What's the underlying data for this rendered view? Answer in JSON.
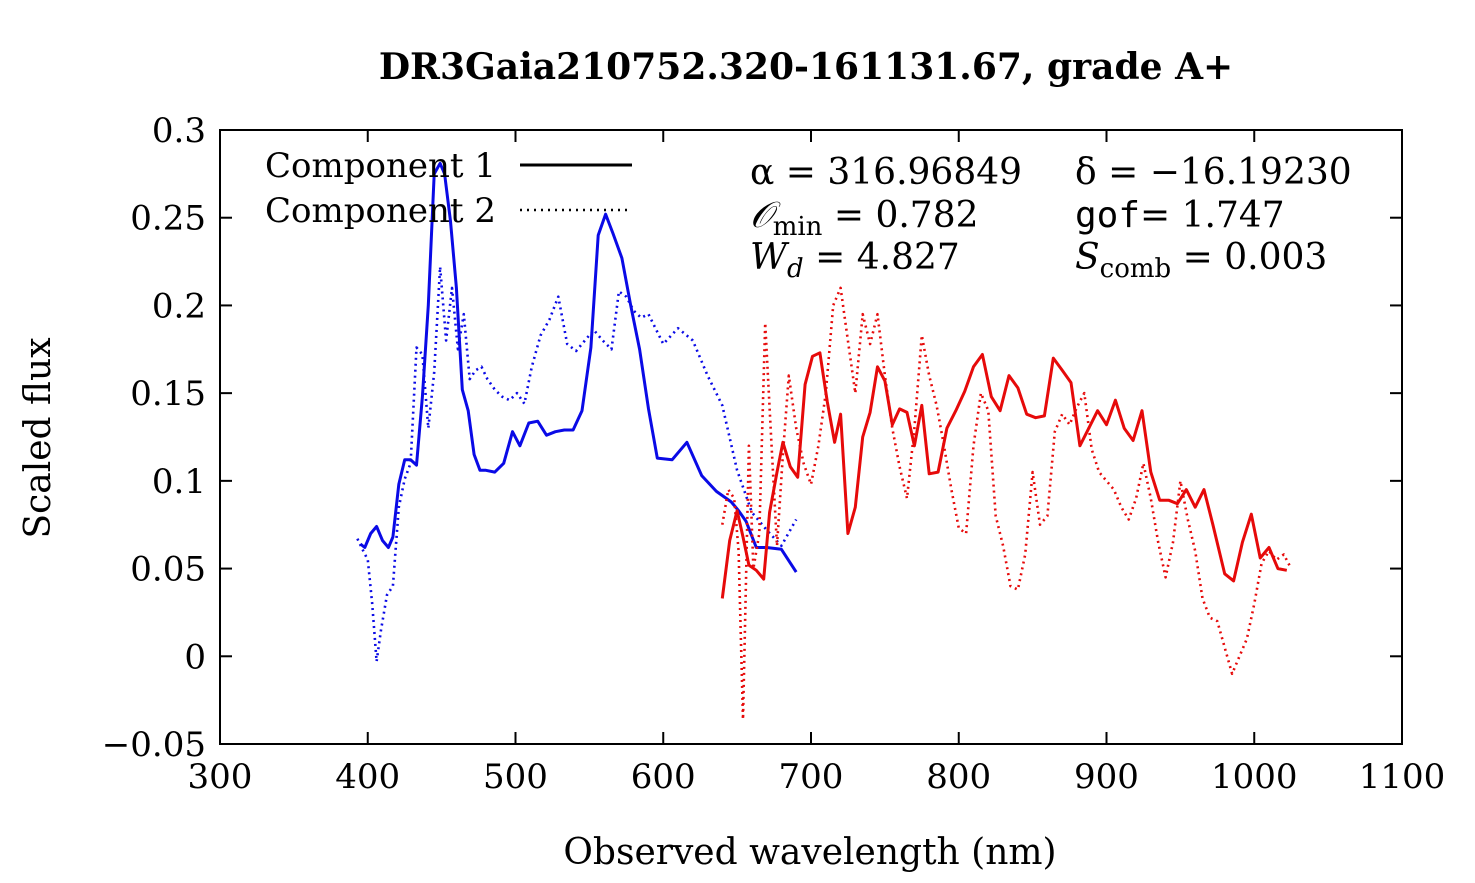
{
  "chart_data": {
    "type": "line",
    "title": "DR3Gaia210752.320-161131.67, grade A+",
    "xlabel": "Observed wavelength (nm)",
    "ylabel": "Scaled flux",
    "xlim": [
      300,
      1100
    ],
    "ylim": [
      -0.05,
      0.3
    ],
    "xticks": [
      300,
      400,
      500,
      600,
      700,
      800,
      900,
      1000,
      1100
    ],
    "xtick_labels": [
      "300",
      "400",
      "500",
      "600",
      "700",
      "800",
      "900",
      "1000",
      "1100"
    ],
    "yticks": [
      -0.05,
      0,
      0.05,
      0.1,
      0.15,
      0.2,
      0.25,
      0.3
    ],
    "ytick_labels": [
      "−0.05",
      "0",
      "0.05",
      "0.1",
      "0.15",
      "0.2",
      "0.25",
      "0.3"
    ],
    "legend": [
      {
        "label": "Component 1",
        "style": "solid"
      },
      {
        "label": "Component 2",
        "style": "dotted"
      }
    ],
    "legend_position": "top-left",
    "annotations": {
      "alpha_label": "α = 316.96849",
      "delta_label": "δ = −16.19230",
      "omin_symbol": "𝒪",
      "omin_sub": "min",
      "omin_value": " = 0.782",
      "gof_label": "gof",
      "gof_value": "= 1.747",
      "wd_symbol": "W",
      "wd_sub": "d",
      "wd_value": " = 4.827",
      "scomb_symbol": "S",
      "scomb_sub": "comb",
      "scomb_value": " = 0.003"
    },
    "series": [
      {
        "name": "Component 1 (blue)",
        "component": 1,
        "color": "#0a0ae6",
        "dash": "solid",
        "x": [
          395,
          398,
          402,
          406,
          410,
          414,
          417,
          421,
          425,
          429,
          433,
          437,
          441,
          445,
          449,
          452,
          456,
          460,
          464,
          468,
          472,
          476,
          480,
          486,
          492,
          498,
          503,
          509,
          515,
          521,
          527,
          533,
          539,
          545,
          551,
          556,
          561,
          566,
          572,
          578,
          584,
          590,
          596,
          606,
          616,
          626,
          636,
          646,
          651,
          656,
          663,
          670,
          680,
          690
        ],
        "y": [
          0.064,
          0.062,
          0.07,
          0.074,
          0.066,
          0.062,
          0.068,
          0.098,
          0.112,
          0.112,
          0.109,
          0.148,
          0.2,
          0.275,
          0.281,
          0.275,
          0.248,
          0.21,
          0.152,
          0.14,
          0.115,
          0.106,
          0.106,
          0.105,
          0.11,
          0.128,
          0.12,
          0.133,
          0.134,
          0.126,
          0.128,
          0.129,
          0.129,
          0.14,
          0.176,
          0.24,
          0.252,
          0.241,
          0.227,
          0.2,
          0.175,
          0.141,
          0.113,
          0.112,
          0.122,
          0.103,
          0.094,
          0.088,
          0.083,
          0.077,
          0.062,
          0.062,
          0.061,
          0.048
        ]
      },
      {
        "name": "Component 2 (blue)",
        "component": 2,
        "color": "#0a0ae6",
        "dash": "dotted",
        "x": [
          393,
          397,
          400,
          403,
          406,
          409,
          413,
          417,
          421,
          425,
          429,
          433,
          437,
          441,
          445,
          449,
          453,
          457,
          461,
          465,
          469,
          473,
          477,
          481,
          486,
          491,
          496,
          501,
          506,
          511,
          517,
          523,
          529,
          535,
          541,
          547,
          553,
          559,
          565,
          570,
          575,
          580,
          585,
          590,
          600,
          610,
          620,
          630,
          640,
          650,
          660,
          670,
          680,
          690
        ],
        "y": [
          0.067,
          0.06,
          0.055,
          0.03,
          -0.003,
          0.015,
          0.035,
          0.04,
          0.085,
          0.101,
          0.11,
          0.176,
          0.172,
          0.13,
          0.162,
          0.222,
          0.18,
          0.21,
          0.175,
          0.195,
          0.158,
          0.163,
          0.165,
          0.158,
          0.152,
          0.148,
          0.146,
          0.15,
          0.144,
          0.165,
          0.183,
          0.192,
          0.205,
          0.178,
          0.174,
          0.18,
          0.186,
          0.18,
          0.175,
          0.208,
          0.205,
          0.197,
          0.193,
          0.195,
          0.178,
          0.187,
          0.18,
          0.16,
          0.143,
          0.106,
          0.082,
          0.072,
          0.063,
          0.078
        ]
      },
      {
        "name": "Component 1 (red)",
        "component": 1,
        "color": "#e60a0a",
        "dash": "solid",
        "x": [
          640,
          645,
          650,
          654,
          658,
          663,
          668,
          672,
          677,
          681,
          686,
          691,
          696,
          701,
          706,
          711,
          716,
          720,
          725,
          730,
          735,
          740,
          745,
          750,
          755,
          760,
          765,
          770,
          775,
          780,
          786,
          792,
          798,
          804,
          810,
          816,
          822,
          828,
          834,
          840,
          846,
          852,
          858,
          864,
          870,
          876,
          882,
          888,
          894,
          900,
          906,
          912,
          918,
          924,
          930,
          936,
          942,
          948,
          954,
          960,
          966,
          972,
          980,
          986,
          992,
          998,
          1004,
          1010,
          1016,
          1022
        ],
        "y": [
          0.033,
          0.066,
          0.083,
          0.068,
          0.052,
          0.049,
          0.044,
          0.082,
          0.105,
          0.122,
          0.108,
          0.102,
          0.155,
          0.171,
          0.173,
          0.145,
          0.122,
          0.138,
          0.07,
          0.085,
          0.125,
          0.139,
          0.165,
          0.157,
          0.132,
          0.141,
          0.139,
          0.12,
          0.143,
          0.104,
          0.105,
          0.13,
          0.14,
          0.151,
          0.165,
          0.172,
          0.148,
          0.14,
          0.16,
          0.153,
          0.138,
          0.136,
          0.137,
          0.17,
          0.163,
          0.156,
          0.12,
          0.13,
          0.14,
          0.132,
          0.146,
          0.13,
          0.123,
          0.14,
          0.105,
          0.089,
          0.089,
          0.087,
          0.095,
          0.085,
          0.095,
          0.075,
          0.047,
          0.043,
          0.065,
          0.081,
          0.056,
          0.062,
          0.05,
          0.049
        ]
      },
      {
        "name": "Component 2 (red)",
        "component": 2,
        "color": "#e60a0a",
        "dash": "dotted",
        "x": [
          640,
          644,
          648,
          651,
          654,
          658,
          661,
          665,
          669,
          673,
          677,
          681,
          685,
          690,
          695,
          700,
          705,
          710,
          715,
          720,
          725,
          730,
          735,
          740,
          745,
          750,
          755,
          760,
          765,
          770,
          775,
          780,
          785,
          790,
          795,
          800,
          805,
          810,
          815,
          820,
          825,
          830,
          835,
          840,
          845,
          850,
          855,
          860,
          865,
          870,
          875,
          880,
          885,
          890,
          895,
          900,
          905,
          910,
          915,
          920,
          925,
          930,
          935,
          940,
          945,
          950,
          955,
          960,
          965,
          970,
          975,
          980,
          985,
          990,
          995,
          1000,
          1005,
          1010,
          1015,
          1020,
          1025
        ],
        "y": [
          0.075,
          0.095,
          0.09,
          0.06,
          -0.036,
          0.12,
          0.05,
          0.07,
          0.19,
          0.125,
          0.063,
          0.115,
          0.16,
          0.13,
          0.11,
          0.098,
          0.12,
          0.15,
          0.2,
          0.21,
          0.18,
          0.15,
          0.195,
          0.178,
          0.195,
          0.16,
          0.13,
          0.108,
          0.09,
          0.13,
          0.183,
          0.16,
          0.143,
          0.12,
          0.095,
          0.073,
          0.07,
          0.12,
          0.15,
          0.14,
          0.08,
          0.063,
          0.04,
          0.038,
          0.058,
          0.105,
          0.075,
          0.08,
          0.128,
          0.138,
          0.132,
          0.142,
          0.15,
          0.118,
          0.105,
          0.1,
          0.095,
          0.085,
          0.078,
          0.09,
          0.11,
          0.09,
          0.065,
          0.045,
          0.065,
          0.1,
          0.078,
          0.06,
          0.033,
          0.022,
          0.02,
          0.005,
          -0.01,
          0.0,
          0.01,
          0.03,
          0.053,
          0.06,
          0.055,
          0.058,
          0.05
        ]
      }
    ]
  }
}
